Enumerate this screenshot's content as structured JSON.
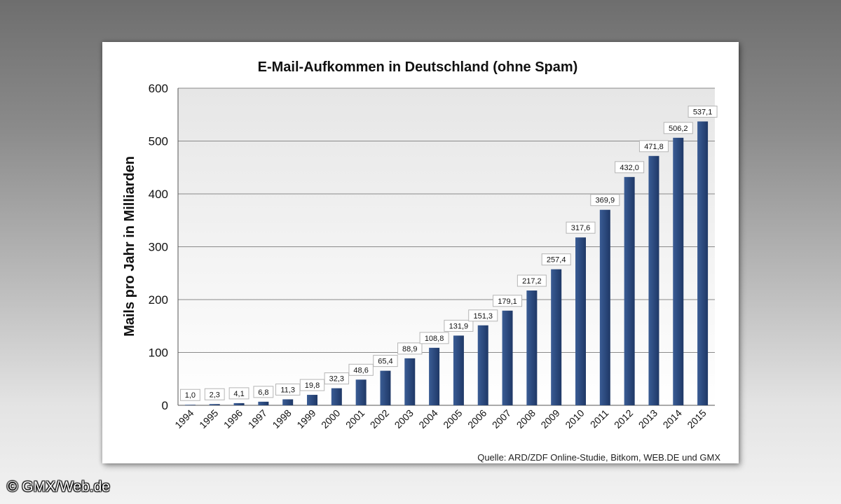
{
  "chart_data": {
    "type": "bar",
    "title": "E-Mail-Aufkommen in Deutschland (ohne Spam)",
    "ylabel": "Mails pro Jahr in Milliarden",
    "xlabel": "",
    "ylim": [
      0,
      600
    ],
    "yticks": [
      "0",
      "100",
      "200",
      "300",
      "400",
      "500",
      "600"
    ],
    "ytick_values": [
      0,
      100,
      200,
      300,
      400,
      500,
      600
    ],
    "categories": [
      "1994",
      "1995",
      "1996",
      "1997",
      "1998",
      "1999",
      "2000",
      "2001",
      "2002",
      "2003",
      "2004",
      "2005",
      "2006",
      "2007",
      "2008",
      "2009",
      "2010",
      "2011",
      "2012",
      "2013",
      "2014",
      "2015"
    ],
    "values": [
      1.0,
      2.3,
      4.1,
      6.8,
      11.3,
      19.8,
      32.3,
      48.6,
      65.4,
      88.9,
      108.8,
      131.9,
      151.3,
      179.1,
      217.2,
      257.4,
      317.6,
      369.9,
      432.0,
      471.8,
      506.2,
      537.1
    ],
    "value_labels": [
      "1,0",
      "2,3",
      "4,1",
      "6,8",
      "11,3",
      "19,8",
      "32,3",
      "48,6",
      "65,4",
      "88,9",
      "108,8",
      "131,9",
      "151,3",
      "179,1",
      "217,2",
      "257,4",
      "317,6",
      "369,9",
      "432,0",
      "471,8",
      "506,2",
      "537,1"
    ],
    "bar_color": "#2c4a7e",
    "grid": true,
    "source": "Quelle: ARD/ZDF Online-Studie, Bitkom, WEB.DE und GMX"
  },
  "watermark": "© GMX/Web.de"
}
